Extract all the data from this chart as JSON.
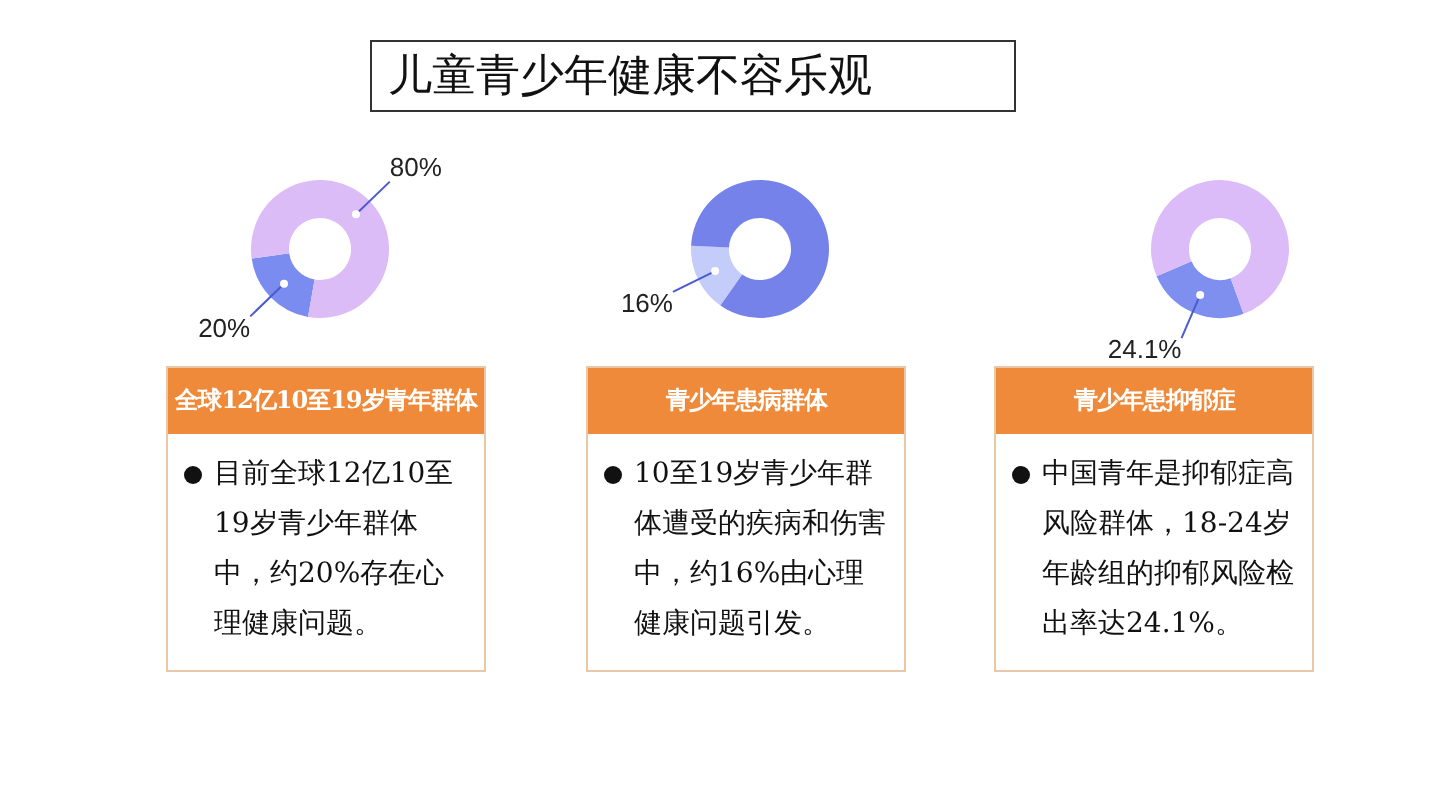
{
  "chart_data": [
    {
      "type": "other",
      "title": "儿童青少年健康不容乐观"
    },
    {
      "type": "donut",
      "title": "全球12亿10至19岁青年群体",
      "categories": [
        null,
        null
      ],
      "values": [
        20,
        80
      ],
      "colors": [
        "#7b8cf0",
        "#dcbcf7"
      ],
      "value_labels": [
        "20%",
        "80%"
      ],
      "legend": false,
      "annotations": [
        "目前全球12亿10至19岁青少年群体中，约20%存在心理健康问题。"
      ]
    },
    {
      "type": "donut",
      "title": "青少年患病群体",
      "categories": [
        null,
        null
      ],
      "values": [
        16,
        84
      ],
      "colors": [
        "#c4cdf9",
        "#7482ea"
      ],
      "value_labels": [
        "16%",
        null
      ],
      "legend": false,
      "annotations": [
        "10至19岁青少年群体遭受的疾病和伤害中，约16%由心理健康问题引发。"
      ]
    },
    {
      "type": "donut",
      "title": "青少年患抑郁症",
      "categories": [
        null,
        null
      ],
      "values": [
        24.1,
        75.9
      ],
      "colors": [
        "#7f8ff0",
        "#dcbcf8"
      ],
      "value_labels": [
        "24.1%",
        null
      ],
      "legend": false,
      "annotations": [
        "中国青年是抑郁症高风险群体，18-24岁年龄组的抑郁风险检出率达24.1%。"
      ]
    }
  ]
}
